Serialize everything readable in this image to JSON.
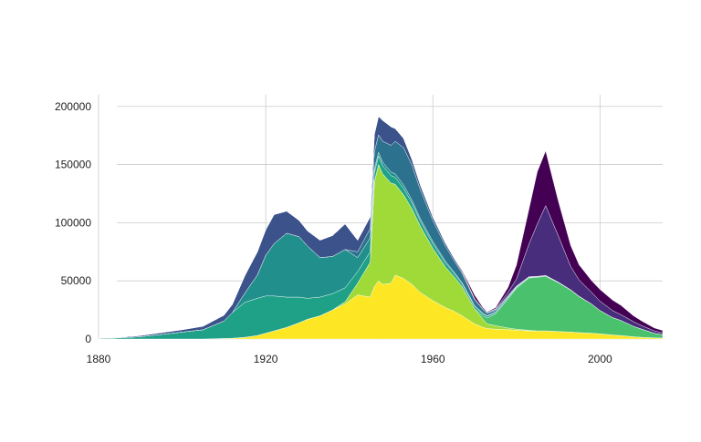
{
  "chart_data": {
    "type": "area",
    "stacked": true,
    "title": "",
    "xlabel": "",
    "ylabel": "",
    "xlim": [
      1880,
      2015
    ],
    "ylim": [
      0,
      210000
    ],
    "x_ticks": [
      1880,
      1920,
      1960,
      2000
    ],
    "y_ticks": [
      0,
      50000,
      100000,
      150000,
      200000
    ],
    "y_tick_labels": [
      "0",
      "50000",
      "100000",
      "150000",
      "200000"
    ],
    "grid": true,
    "legend": "none",
    "x": [
      1880,
      1885,
      1890,
      1895,
      1900,
      1905,
      1910,
      1912,
      1915,
      1918,
      1920,
      1922,
      1925,
      1928,
      1930,
      1933,
      1936,
      1939,
      1942,
      1945,
      1946,
      1947,
      1948,
      1950,
      1951,
      1953,
      1955,
      1957,
      1960,
      1963,
      1965,
      1967,
      1970,
      1972,
      1973,
      1975,
      1978,
      1980,
      1983,
      1985,
      1987,
      1990,
      1993,
      1995,
      1998,
      2000,
      2003,
      2005,
      2008,
      2010,
      2013,
      2015
    ],
    "series": [
      {
        "color": "#fde725",
        "values": [
          0,
          0,
          0,
          0,
          0,
          0,
          500,
          700,
          1500,
          3000,
          5000,
          7000,
          10000,
          14000,
          17000,
          20000,
          25000,
          30000,
          38000,
          36000,
          45000,
          50000,
          47000,
          48000,
          55000,
          52000,
          47000,
          40000,
          33000,
          27000,
          24000,
          20000,
          13000,
          10000,
          9000,
          8500,
          8000,
          7500,
          7000,
          7000,
          7000,
          6500,
          6000,
          5500,
          5000,
          4500,
          3500,
          3000,
          2000,
          1500,
          1000,
          800
        ]
      },
      {
        "color": "#a0da39",
        "values": [
          0,
          0,
          0,
          0,
          0,
          0,
          0,
          0,
          0,
          0,
          0,
          0,
          0,
          0,
          0,
          0,
          0,
          2000,
          10000,
          30000,
          90000,
          100000,
          95000,
          86000,
          78000,
          72000,
          65000,
          57000,
          45000,
          35000,
          30000,
          25000,
          13000,
          7000,
          4000,
          3000,
          1500,
          1000,
          500,
          0,
          0,
          0,
          0,
          0,
          0,
          0,
          0,
          0,
          0,
          0,
          0,
          0
        ]
      },
      {
        "color": "#4ac16d",
        "values": [
          0,
          0,
          0,
          0,
          0,
          0,
          0,
          0,
          0,
          0,
          0,
          0,
          0,
          0,
          0,
          0,
          0,
          0,
          0,
          0,
          0,
          0,
          0,
          0,
          0,
          0,
          0,
          0,
          0,
          0,
          0,
          0,
          0,
          3000,
          5000,
          10000,
          25000,
          35000,
          45000,
          46000,
          47000,
          42000,
          36000,
          31000,
          25000,
          20000,
          15000,
          13000,
          9000,
          7000,
          4000,
          3000
        ]
      },
      {
        "color": "#1fa187",
        "values": [
          500,
          1000,
          2000,
          4000,
          6000,
          8000,
          15000,
          22000,
          30000,
          32000,
          32000,
          30000,
          26000,
          22000,
          18000,
          16000,
          14000,
          12000,
          10000,
          9000,
          8000,
          7500,
          7000,
          6500,
          6000,
          5500,
          5000,
          4500,
          4000,
          3500,
          3000,
          2500,
          2000,
          1500,
          1500,
          1200,
          1000,
          800,
          600,
          500,
          400,
          300,
          200,
          200,
          100,
          100,
          0,
          0,
          0,
          0,
          0,
          0
        ]
      },
      {
        "color": "#21908c",
        "values": [
          0,
          0,
          0,
          0,
          0,
          0,
          0,
          0,
          8000,
          20000,
          35000,
          45000,
          55000,
          52000,
          45000,
          34000,
          32000,
          33000,
          12000,
          12000,
          3000,
          3000,
          3000,
          3000,
          3000,
          3000,
          2500,
          2000,
          2000,
          1500,
          1000,
          1000,
          800,
          700,
          600,
          500,
          400,
          300,
          200,
          200,
          100,
          100,
          0,
          0,
          0,
          0,
          0,
          0,
          0,
          0,
          0,
          0
        ]
      },
      {
        "color": "#2c728e",
        "values": [
          0,
          0,
          0,
          0,
          0,
          0,
          0,
          0,
          0,
          0,
          0,
          0,
          0,
          0,
          0,
          0,
          0,
          0,
          5000,
          8000,
          15000,
          15000,
          18000,
          23000,
          28000,
          32000,
          30000,
          25000,
          18000,
          13000,
          10000,
          8000,
          5000,
          3000,
          2000,
          1500,
          1000,
          500,
          0,
          0,
          0,
          0,
          0,
          0,
          0,
          0,
          0,
          0,
          0,
          0,
          0,
          0
        ]
      },
      {
        "color": "#3b528b",
        "values": [
          200,
          500,
          1000,
          1500,
          2000,
          3000,
          5000,
          7000,
          15000,
          20000,
          22000,
          25000,
          19000,
          14000,
          13000,
          15000,
          18000,
          22000,
          10000,
          10000,
          15000,
          16000,
          18000,
          16000,
          11000,
          8000,
          5000,
          4000,
          3000,
          2500,
          2000,
          1500,
          1000,
          800,
          800,
          700,
          500,
          400,
          300,
          200,
          200,
          100,
          100,
          100,
          0,
          0,
          0,
          0,
          0,
          0,
          0,
          0
        ]
      },
      {
        "color": "#472d7b",
        "values": [
          0,
          0,
          0,
          0,
          0,
          0,
          0,
          0,
          0,
          0,
          0,
          0,
          0,
          0,
          0,
          0,
          0,
          0,
          0,
          0,
          0,
          0,
          0,
          0,
          0,
          0,
          0,
          0,
          0,
          0,
          0,
          0,
          0,
          0,
          0,
          500,
          3000,
          6000,
          28000,
          45000,
          60000,
          40000,
          20000,
          14000,
          10000,
          8000,
          6000,
          5000,
          4000,
          3000,
          2000,
          1500
        ]
      },
      {
        "color": "#440154",
        "values": [
          0,
          0,
          0,
          0,
          0,
          0,
          0,
          0,
          0,
          0,
          0,
          0,
          0,
          0,
          0,
          0,
          0,
          0,
          0,
          0,
          0,
          0,
          0,
          0,
          0,
          0,
          0,
          0,
          0,
          0,
          0,
          1000,
          3000,
          1000,
          500,
          1000,
          4000,
          12000,
          30000,
          45000,
          47000,
          30000,
          18000,
          13000,
          10000,
          10000,
          9000,
          8000,
          5000,
          4000,
          2500,
          2000
        ]
      }
    ]
  }
}
